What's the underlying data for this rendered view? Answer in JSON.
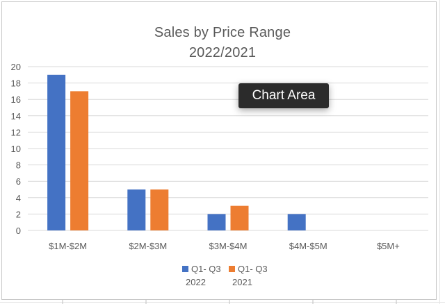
{
  "chart_data": {
    "type": "bar",
    "title": "Sales by Price Range",
    "subtitle": "2022/2021",
    "categories": [
      "$1M-$2M",
      "$2M-$3M",
      "$3M-$4M",
      "$4M-$5M",
      "$5M+"
    ],
    "series": [
      {
        "name_line1": "Q1- Q3",
        "name_line2": "2022",
        "color": "#4472C4",
        "values": [
          19,
          5,
          2,
          2,
          0
        ]
      },
      {
        "name_line1": "Q1- Q3",
        "name_line2": "2021",
        "color": "#ED7D31",
        "values": [
          17,
          5,
          3,
          0,
          0
        ]
      }
    ],
    "ylim": [
      0,
      20
    ],
    "yticks": [
      "0",
      "2",
      "4",
      "6",
      "8",
      "10",
      "12",
      "14",
      "16",
      "18",
      "20"
    ],
    "ytick_values": [
      0,
      2,
      4,
      6,
      8,
      10,
      12,
      14,
      16,
      18,
      20
    ],
    "grid": true,
    "legend": "bottom",
    "xlabel": "",
    "ylabel": ""
  },
  "tooltip": {
    "label": "Chart Area"
  },
  "colors": {
    "gridline": "#d9d9d9",
    "axis_text": "#595959"
  }
}
